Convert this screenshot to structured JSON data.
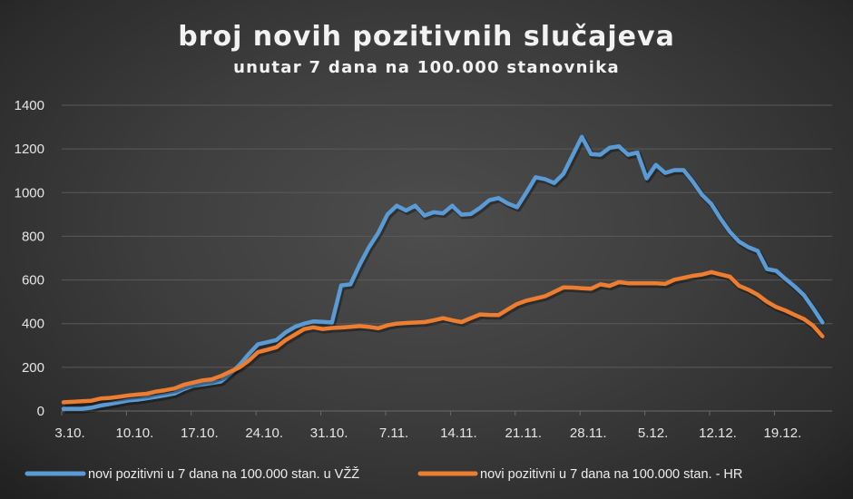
{
  "chart_data": {
    "type": "line",
    "title": "broj novih pozitivnih slučajeva",
    "subtitle": "unutar 7 dana na 100.000 stanovnika",
    "xlabel": "",
    "ylabel": "",
    "ylim": [
      0,
      1400
    ],
    "yticks": [
      "0",
      "200",
      "400",
      "600",
      "800",
      "1000",
      "1200",
      "1400"
    ],
    "grid": true,
    "legend": "bottom",
    "x_start": "3.10.",
    "x_end": "24.12.",
    "xtick_labels": [
      "3.10.",
      "10.10.",
      "17.10.",
      "24.10.",
      "31.10.",
      "7.11.",
      "14.11.",
      "21.11.",
      "28.11.",
      "5.12.",
      "12.12.",
      "19.12."
    ],
    "series": [
      {
        "name": "novi pozitivni u 7 dana na 100.000 stan. u VŽŽ",
        "color": "#5b9bd5",
        "values": [
          10,
          10,
          10,
          15,
          25,
          32,
          40,
          48,
          52,
          58,
          65,
          72,
          80,
          100,
          116,
          122,
          128,
          135,
          170,
          210,
          260,
          305,
          315,
          325,
          360,
          385,
          400,
          410,
          408,
          405,
          575,
          580,
          670,
          750,
          815,
          900,
          940,
          918,
          940,
          895,
          910,
          905,
          940,
          899,
          902,
          930,
          965,
          975,
          950,
          933,
          1000,
          1070,
          1062,
          1044,
          1085,
          1170,
          1255,
          1176,
          1173,
          1205,
          1212,
          1173,
          1183,
          1065,
          1127,
          1090,
          1103,
          1103,
          1050,
          989,
          947,
          880,
          820,
          775,
          750,
          733,
          650,
          642,
          605,
          570,
          530,
          470,
          405
        ]
      },
      {
        "name": "novi pozitivni u 7 dana na 100.000 stan. - HR",
        "color": "#ed7d31",
        "values": [
          40,
          42,
          45,
          47,
          57,
          60,
          65,
          71,
          75,
          79,
          89,
          95,
          103,
          120,
          130,
          140,
          145,
          160,
          180,
          199,
          230,
          269,
          280,
          292,
          325,
          350,
          375,
          383,
          375,
          380,
          382,
          385,
          389,
          385,
          379,
          392,
          400,
          403,
          405,
          407,
          415,
          425,
          415,
          407,
          425,
          442,
          440,
          439,
          465,
          490,
          505,
          515,
          525,
          545,
          566,
          565,
          562,
          560,
          580,
          573,
          590,
          585,
          585,
          585,
          585,
          582,
          601,
          610,
          619,
          625,
          636,
          625,
          615,
          573,
          555,
          532,
          500,
          476,
          460,
          440,
          421,
          390,
          342
        ]
      }
    ]
  }
}
